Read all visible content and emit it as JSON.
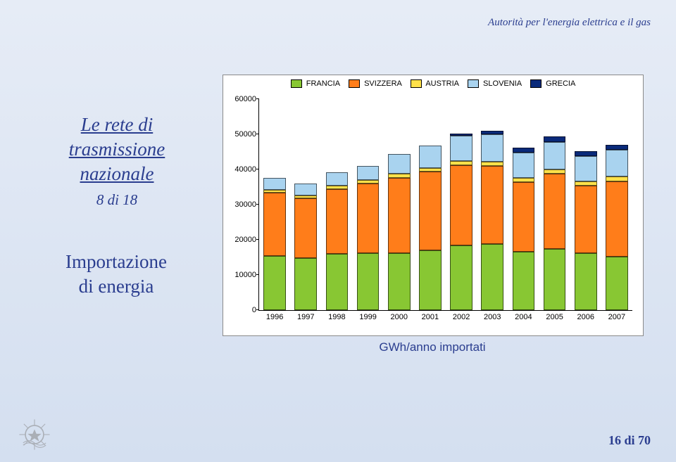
{
  "header": {
    "text": "Autorità per l'energia elettrica e il gas",
    "fontsize": 15,
    "color": "#2a3d8f"
  },
  "title": {
    "line1": "Le rete di",
    "line2": "trasmissione",
    "line3": "nazionale",
    "count_text": "8 di 18",
    "fontsize": 27,
    "color": "#2a3d8f"
  },
  "caption": {
    "line1": "Importazione",
    "line2": "di energia",
    "fontsize": 27
  },
  "chart_caption": "GWh/anno importati",
  "page_number": "16 di 70",
  "chart": {
    "type": "stacked-bar",
    "background_color": "#ffffff",
    "border_color": "#8a8a8a",
    "ylim": [
      0,
      60000
    ],
    "ytick_step": 10000,
    "yticks": [
      0,
      10000,
      20000,
      30000,
      40000,
      50000,
      60000
    ],
    "label_fontsize": 11,
    "axis_color": "#000000",
    "bar_width": 0.72,
    "categories": [
      "1996",
      "1997",
      "1998",
      "1999",
      "2000",
      "2001",
      "2002",
      "2003",
      "2004",
      "2005",
      "2006",
      "2007"
    ],
    "series": [
      {
        "name": "FRANCIA",
        "color": "#88c733"
      },
      {
        "name": "SVIZZERA",
        "color": "#ff7d1a"
      },
      {
        "name": "AUSTRIA",
        "color": "#ffe14a"
      },
      {
        "name": "SLOVENIA",
        "color": "#a9d3ef"
      },
      {
        "name": "GRECIA",
        "color": "#0a2a7a"
      }
    ],
    "values": [
      [
        15500,
        18000,
        800,
        3400,
        0
      ],
      [
        14800,
        17000,
        800,
        3500,
        0
      ],
      [
        16000,
        18500,
        900,
        3800,
        0
      ],
      [
        16300,
        19800,
        900,
        4000,
        0
      ],
      [
        16200,
        21500,
        1100,
        5600,
        0
      ],
      [
        17000,
        22400,
        1100,
        6300,
        0
      ],
      [
        18500,
        22800,
        1200,
        7100,
        600
      ],
      [
        18800,
        22200,
        1300,
        7700,
        1000
      ],
      [
        16700,
        19700,
        1300,
        7200,
        1400
      ],
      [
        17500,
        21300,
        1300,
        7800,
        1500
      ],
      [
        16200,
        19200,
        1200,
        7300,
        1300
      ],
      [
        15300,
        21400,
        1300,
        7600,
        1500
      ]
    ]
  }
}
